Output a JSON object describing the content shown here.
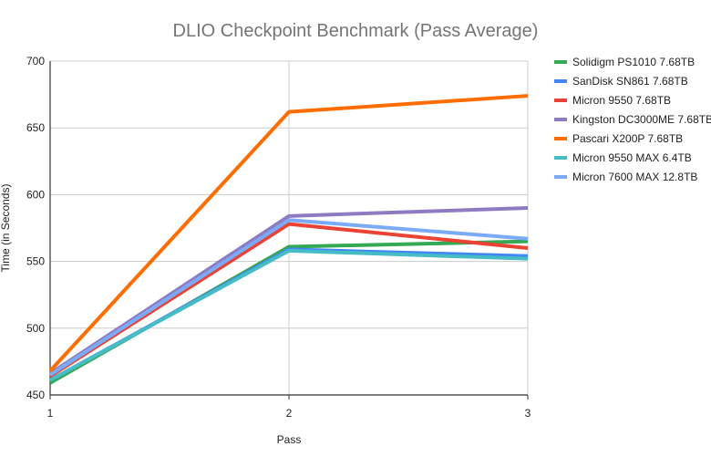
{
  "chart_data": {
    "type": "line",
    "title": "DLIO Checkpoint Benchmark (Pass Average)",
    "xlabel": "Pass",
    "ylabel": "Time (in Seconds)",
    "x": [
      1,
      2,
      3
    ],
    "x_tick_labels": [
      "1",
      "2",
      "3"
    ],
    "ylim": [
      450,
      700
    ],
    "y_ticks": [
      450,
      500,
      550,
      600,
      650,
      700
    ],
    "y_tick_labels": [
      "450",
      "500",
      "550",
      "600",
      "650",
      "700"
    ],
    "grid": true,
    "legend_position": "right",
    "series": [
      {
        "name": "Solidigm PS1010 7.68TB",
        "color": "#34a853",
        "values": [
          459,
          561,
          565
        ]
      },
      {
        "name": "SanDisk SN861 7.68TB",
        "color": "#4285f4",
        "values": [
          461,
          559,
          554
        ]
      },
      {
        "name": "Micron 9550 7.68TB",
        "color": "#ea4335",
        "values": [
          464,
          578,
          560
        ]
      },
      {
        "name": "Kingston DC3000ME 7.68TB",
        "color": "#8e7cc3",
        "values": [
          466,
          584,
          590
        ]
      },
      {
        "name": "Pascari X200P 7.68TB",
        "color": "#ff6d01",
        "values": [
          468,
          662,
          674
        ]
      },
      {
        "name": "Micron 9550 MAX 6.4TB",
        "color": "#46bdc6",
        "values": [
          461,
          558,
          552
        ]
      },
      {
        "name": "Micron 7600 MAX 12.8TB",
        "color": "#7baaf7",
        "values": [
          465,
          581,
          567
        ]
      }
    ]
  }
}
